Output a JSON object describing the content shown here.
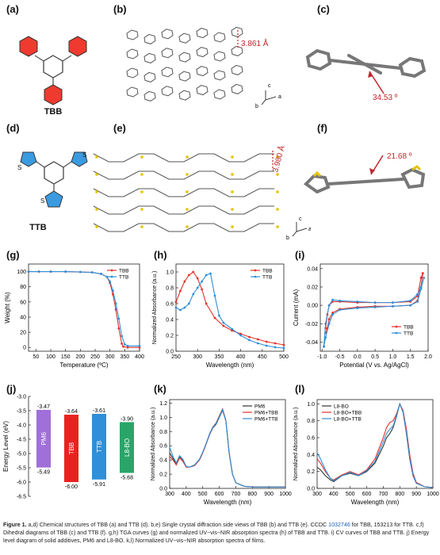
{
  "labels": {
    "a": "(a)",
    "b": "(b)",
    "c": "(c)",
    "d": "(d)",
    "e": "(e)",
    "f": "(f)",
    "g": "(g)",
    "h": "(h)",
    "i": "(i)",
    "j": "(j)",
    "k": "(k)",
    "l": "(l)"
  },
  "molecules": {
    "tbb_name": "TBB",
    "ttb_name": "TTB",
    "thiophene_atom": "S"
  },
  "crystal": {
    "b_distance": "3.861 Å",
    "c_angle": "34.53 º",
    "e_distance": "3.980 Å",
    "f_angle": "21.68 º",
    "axes_c": "c",
    "axes_b": "b",
    "axes_a": "a"
  },
  "colors": {
    "tbb": "#e4322b",
    "ttb": "#2f8fd8",
    "pm6": "#a070d8",
    "l8bo": "#2aa56a",
    "annot": "#c0262a"
  },
  "chart_data": [
    {
      "id": "g",
      "type": "line",
      "xlabel": "Temperature (ºC)",
      "ylabel": "Weight (%)",
      "xlim": [
        25,
        400
      ],
      "ylim": [
        -5,
        110
      ],
      "xticks": [
        50,
        100,
        150,
        200,
        250,
        300,
        350,
        400
      ],
      "yticks": [
        0,
        20,
        40,
        60,
        80,
        100
      ],
      "legend": "top-right",
      "series": [
        {
          "name": "TBB",
          "color": "#e4322b",
          "x": [
            25,
            60,
            100,
            150,
            200,
            240,
            270,
            290,
            300,
            310,
            320,
            330,
            340,
            345,
            360,
            400
          ],
          "y": [
            100,
            100,
            100,
            100,
            99.5,
            99,
            97,
            93,
            85,
            70,
            50,
            25,
            5,
            1,
            0,
            0
          ]
        },
        {
          "name": "TTB",
          "color": "#2f8fd8",
          "x": [
            25,
            60,
            100,
            150,
            200,
            240,
            270,
            290,
            300,
            310,
            320,
            330,
            340,
            350,
            360,
            400
          ],
          "y": [
            100,
            100,
            100,
            100,
            99.5,
            99,
            97,
            93,
            87,
            75,
            58,
            38,
            15,
            4,
            2,
            2
          ]
        }
      ]
    },
    {
      "id": "h",
      "type": "line",
      "xlabel": "Wavelength (nm)",
      "ylabel": "Normalized Absorbance (a.u.)",
      "xlim": [
        250,
        500
      ],
      "ylim": [
        0,
        1.1
      ],
      "xticks": [
        250,
        300,
        350,
        400,
        450,
        500
      ],
      "yticks": [
        0.0,
        0.2,
        0.4,
        0.6,
        0.8,
        1.0
      ],
      "legend": "top-right",
      "series": [
        {
          "name": "TBB",
          "color": "#e4322b",
          "x": [
            250,
            260,
            270,
            280,
            290,
            300,
            310,
            320,
            340,
            360,
            380,
            400,
            420,
            440,
            460,
            480,
            500
          ],
          "y": [
            0.62,
            0.76,
            0.88,
            0.96,
            1.0,
            0.92,
            0.78,
            0.6,
            0.42,
            0.32,
            0.26,
            0.22,
            0.18,
            0.15,
            0.12,
            0.1,
            0.08
          ]
        },
        {
          "name": "TTB",
          "color": "#2f8fd8",
          "x": [
            250,
            260,
            270,
            280,
            290,
            300,
            310,
            320,
            330,
            340,
            350,
            360,
            380,
            400,
            420,
            440,
            460,
            480,
            500
          ],
          "y": [
            0.55,
            0.52,
            0.55,
            0.6,
            0.72,
            0.8,
            0.88,
            0.96,
            0.98,
            0.7,
            0.45,
            0.36,
            0.28,
            0.2,
            0.14,
            0.1,
            0.07,
            0.05,
            0.04
          ]
        }
      ]
    },
    {
      "id": "i",
      "type": "line",
      "xlabel": "Potential (V vs. Ag/AgCl)",
      "ylabel": "Current (mA)",
      "xlim": [
        -1.05,
        2.0
      ],
      "ylim": [
        -0.05,
        0.045
      ],
      "xticks": [
        -1.0,
        -0.5,
        0.0,
        0.5,
        1.0,
        1.5,
        2.0
      ],
      "yticks": [
        -0.04,
        -0.02,
        0.0,
        0.02,
        0.04
      ],
      "legend": "bottom-right",
      "series": [
        {
          "name": "TBB",
          "color": "#e4322b",
          "x": [
            -0.9,
            -0.85,
            -0.8,
            -0.7,
            -0.5,
            0,
            0.5,
            1,
            1.5,
            1.7,
            1.8,
            1.85,
            1.8,
            1.7,
            1.5,
            1,
            0.5,
            0,
            -0.5,
            -0.7,
            -0.8,
            -0.85,
            -0.9
          ],
          "y": [
            -0.025,
            -0.01,
            0.0,
            0.004,
            0.004,
            0.003,
            0.003,
            0.003,
            0.004,
            0.01,
            0.03,
            0.035,
            0.02,
            0.005,
            0.0,
            -0.001,
            -0.001,
            -0.002,
            -0.004,
            -0.008,
            -0.015,
            -0.025,
            -0.03
          ]
        },
        {
          "name": "TTB",
          "color": "#2f8fd8",
          "x": [
            -0.95,
            -0.9,
            -0.8,
            -0.7,
            -0.5,
            0,
            0.5,
            1,
            1.5,
            1.7,
            1.8,
            1.88,
            1.8,
            1.7,
            1.5,
            1,
            0.5,
            0,
            -0.5,
            -0.7,
            -0.8,
            -0.9,
            -0.95
          ],
          "y": [
            -0.045,
            -0.02,
            0.0,
            0.006,
            0.005,
            0.004,
            0.003,
            0.003,
            0.005,
            0.012,
            0.02,
            0.03,
            0.018,
            0.004,
            0.0,
            -0.001,
            -0.002,
            -0.003,
            -0.005,
            -0.01,
            -0.02,
            -0.035,
            -0.045
          ]
        }
      ]
    },
    {
      "id": "j",
      "type": "bar",
      "ylabel": "Energy Level (eV)",
      "ylim": [
        -6.5,
        -3.0
      ],
      "yticks": [
        -6.5,
        -6.0,
        -5.5,
        -5.0,
        -4.5,
        -4.0,
        -3.5,
        -3.0
      ],
      "categories": [
        "PM6",
        "TBB",
        "TTB",
        "L8-BO"
      ],
      "lumo": [
        -3.47,
        -3.64,
        -3.61,
        -3.9
      ],
      "homo": [
        -5.49,
        -6.0,
        -5.91,
        -5.68
      ],
      "lumo_labels": [
        "-3.47",
        "-3.64",
        "-3.61",
        "-3.90"
      ],
      "homo_labels": [
        "-5.49",
        "-6.00",
        "-5.91",
        "-5.68"
      ],
      "colors": [
        "#a070d8",
        "#e8231f",
        "#2f8fd8",
        "#2aa56a"
      ]
    },
    {
      "id": "k",
      "type": "line",
      "xlabel": "Wavelength (nm)",
      "ylabel": "Normalized Absorbance (a.u.)",
      "xlim": [
        300,
        1000
      ],
      "ylim": [
        0,
        1.25
      ],
      "xticks": [
        300,
        400,
        500,
        600,
        700,
        800,
        900,
        1000
      ],
      "yticks": [
        0.0,
        0.2,
        0.4,
        0.6,
        0.8,
        1.0,
        1.2
      ],
      "legend": "top-right",
      "series": [
        {
          "name": "PM6",
          "color": "#333333",
          "x": [
            300,
            320,
            340,
            360,
            380,
            400,
            420,
            450,
            480,
            500,
            520,
            540,
            560,
            580,
            600,
            620,
            640,
            660,
            680,
            700,
            750,
            800,
            850,
            900,
            950,
            1000
          ],
          "y": [
            0.5,
            0.42,
            0.35,
            0.45,
            0.4,
            0.3,
            0.3,
            0.32,
            0.4,
            0.5,
            0.62,
            0.75,
            0.85,
            0.9,
            1.0,
            1.1,
            0.95,
            0.5,
            0.2,
            0.08,
            0.03,
            0.02,
            0.02,
            0.02,
            0.02,
            0.02
          ]
        },
        {
          "name": "PM6+TBB",
          "color": "#e4322b",
          "x": [
            300,
            320,
            340,
            360,
            380,
            400,
            420,
            450,
            480,
            500,
            520,
            540,
            560,
            580,
            600,
            620,
            640,
            660,
            680,
            700,
            750,
            800,
            850,
            900,
            950,
            1000
          ],
          "y": [
            0.45,
            0.4,
            0.33,
            0.43,
            0.38,
            0.3,
            0.3,
            0.32,
            0.4,
            0.5,
            0.62,
            0.76,
            0.86,
            0.92,
            1.02,
            1.12,
            0.96,
            0.5,
            0.2,
            0.08,
            0.03,
            0.02,
            0.02,
            0.02,
            0.02,
            0.02
          ]
        },
        {
          "name": "PM6+TTB",
          "color": "#2f8fd8",
          "x": [
            300,
            320,
            340,
            360,
            380,
            400,
            420,
            450,
            480,
            500,
            520,
            540,
            560,
            580,
            600,
            620,
            640,
            660,
            680,
            700,
            750,
            800,
            850,
            900,
            950,
            1000
          ],
          "y": [
            0.58,
            0.45,
            0.36,
            0.46,
            0.41,
            0.31,
            0.3,
            0.33,
            0.41,
            0.51,
            0.63,
            0.76,
            0.86,
            0.91,
            1.01,
            1.11,
            0.95,
            0.49,
            0.2,
            0.08,
            0.03,
            0.02,
            0.02,
            0.02,
            0.02,
            0.02
          ]
        }
      ]
    },
    {
      "id": "l",
      "type": "line",
      "xlabel": "Wavelength (nm)",
      "ylabel": "Normalized Absorbance (a.u.)",
      "xlim": [
        300,
        1000
      ],
      "ylim": [
        0,
        1.05
      ],
      "xticks": [
        300,
        400,
        500,
        600,
        700,
        800,
        900,
        1000
      ],
      "yticks": [
        0.0,
        0.2,
        0.4,
        0.6,
        0.8,
        1.0
      ],
      "legend": "top-left",
      "series": [
        {
          "name": "L8-BO",
          "color": "#333333",
          "x": [
            300,
            320,
            350,
            380,
            400,
            450,
            500,
            550,
            600,
            650,
            700,
            720,
            740,
            760,
            780,
            800,
            820,
            840,
            860,
            880,
            900,
            950,
            1000
          ],
          "y": [
            0.25,
            0.22,
            0.15,
            0.1,
            0.08,
            0.15,
            0.18,
            0.15,
            0.2,
            0.3,
            0.5,
            0.6,
            0.65,
            0.72,
            0.85,
            1.0,
            0.9,
            0.65,
            0.35,
            0.15,
            0.06,
            0.02,
            0.01
          ]
        },
        {
          "name": "L8-BO+TBB",
          "color": "#e4322b",
          "x": [
            300,
            320,
            350,
            380,
            400,
            450,
            500,
            550,
            600,
            650,
            700,
            720,
            740,
            760,
            780,
            800,
            820,
            840,
            860,
            880,
            900,
            950,
            1000
          ],
          "y": [
            0.35,
            0.3,
            0.2,
            0.12,
            0.1,
            0.16,
            0.2,
            0.16,
            0.22,
            0.35,
            0.6,
            0.72,
            0.78,
            0.8,
            0.88,
            1.0,
            0.92,
            0.7,
            0.4,
            0.18,
            0.07,
            0.02,
            0.01
          ]
        },
        {
          "name": "L8-BO+TTB",
          "color": "#2f8fd8",
          "x": [
            300,
            320,
            350,
            380,
            400,
            450,
            500,
            550,
            600,
            650,
            700,
            720,
            740,
            760,
            780,
            800,
            820,
            840,
            860,
            880,
            900,
            950,
            1000
          ],
          "y": [
            0.42,
            0.35,
            0.22,
            0.12,
            0.09,
            0.15,
            0.19,
            0.15,
            0.21,
            0.32,
            0.55,
            0.65,
            0.7,
            0.74,
            0.86,
            1.0,
            0.9,
            0.66,
            0.36,
            0.16,
            0.06,
            0.02,
            0.01
          ]
        }
      ]
    }
  ],
  "caption": {
    "lead": "Figure 1.",
    "text1": " a,d) Chemical structures of TBB (a) and TTB (d). b,e) Single crystal diffraction side views of TBB (b) and TTB (e). CCDC ",
    "ccdc1": "1032746",
    "text2": " for TBB, 153213 for TTB. c,f) Dihedral diagrams of TBB (c) and TTB (f). g,h) TGA curves (g) and normalized UV−vis−NIR absorption spectra (h) of TBB and TTB. i) CV curves of TBB and TTB. j) Energy level diagram of solid additives, PM6 and L8-BO. k,l) Normalized UV−vis−NIR absorption spectra of films."
  }
}
